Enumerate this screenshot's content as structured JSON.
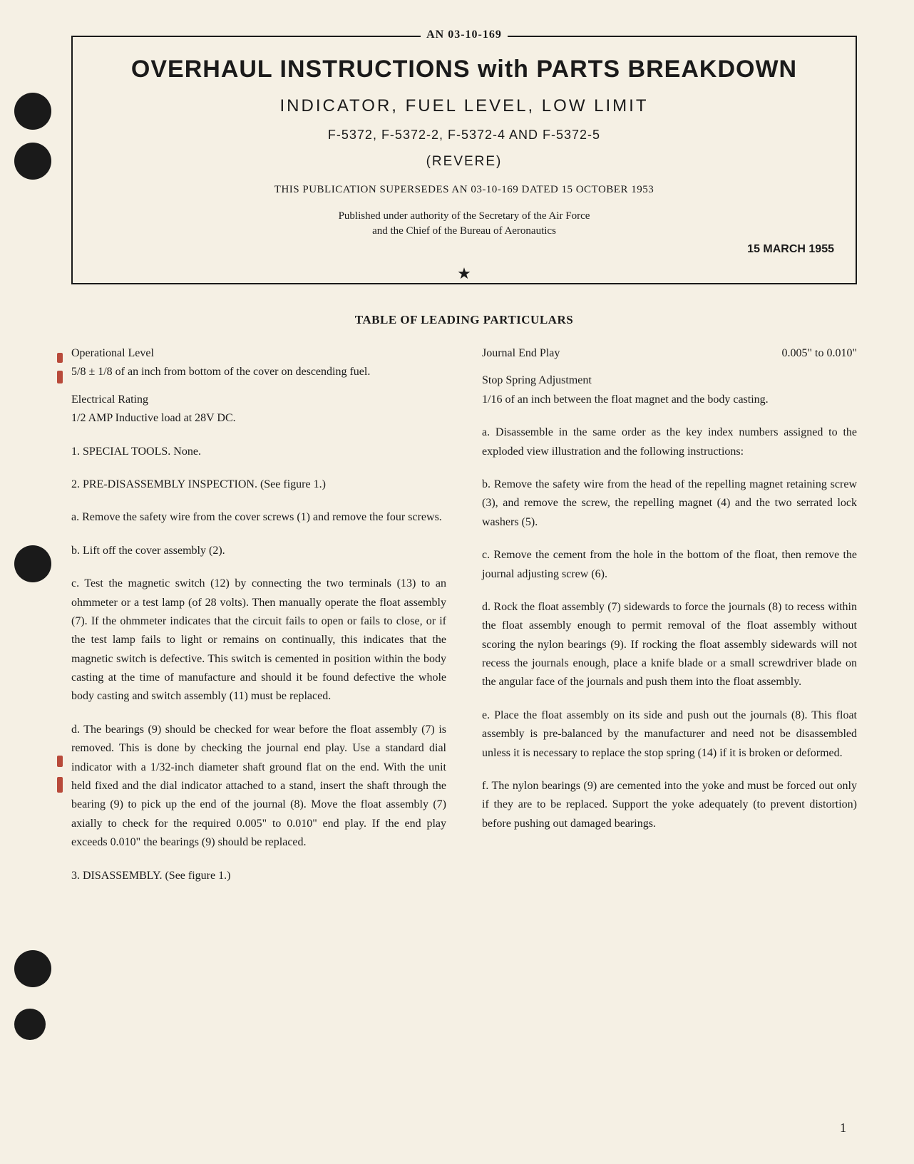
{
  "header": {
    "doc_id": "AN 03-10-169",
    "title": "OVERHAUL INSTRUCTIONS with PARTS BREAKDOWN",
    "subtitle": "INDICATOR, FUEL LEVEL, LOW LIMIT",
    "part_numbers": "F-5372, F-5372-2, F-5372-4 AND F-5372-5",
    "manufacturer": "(REVERE)",
    "supersedes": "THIS PUBLICATION SUPERSEDES AN 03-10-169 DATED 15 OCTOBER 1953",
    "authority_1": "Published under authority of the Secretary of the Air Force",
    "authority_2": "and the Chief of the Bureau of Aeronautics",
    "date": "15 MARCH 1955",
    "star": "★"
  },
  "table_heading": "TABLE OF LEADING PARTICULARS",
  "particulars": {
    "op_level_label": "Operational Level",
    "op_level_value": "5/8 ± 1/8 of an inch from bottom of the cover on descending fuel.",
    "electrical_label": "Electrical Rating",
    "electrical_value": "1/2 AMP Inductive load at 28V DC.",
    "journal_label": "Journal End Play",
    "journal_value": "0.005\" to 0.010\"",
    "stop_spring_label": "Stop Spring Adjustment",
    "stop_spring_value": "1/16 of an inch between the float magnet and the body casting."
  },
  "body": {
    "s1": "1. SPECIAL TOOLS. None.",
    "s2": "2. PRE-DISASSEMBLY INSPECTION. (See figure 1.)",
    "s2a": "a. Remove the safety wire from the cover screws (1) and remove the four screws.",
    "s2b": "b. Lift off the cover assembly (2).",
    "s2c": "c. Test the magnetic switch (12) by connecting the two terminals (13) to an ohmmeter or a test lamp (of 28 volts). Then manually operate the float assembly (7). If the ohmmeter indicates that the circuit fails to open or fails to close, or if the test lamp fails to light or remains on continually, this indicates that the magnetic switch is defective. This switch is cemented in position within the body casting at the time of manufacture and should it be found defective the whole body casting and switch assembly (11) must be replaced.",
    "s2d": "d. The bearings (9) should be checked for wear before the float assembly (7) is removed. This is done by checking the journal end play. Use a standard dial indicator with a 1/32-inch diameter shaft ground flat on the end. With the unit held fixed and the dial indicator attached to a stand, insert the shaft through the bearing (9) to pick up the end of the journal (8). Move the float assembly (7) axially to check for the required 0.005\" to 0.010\" end play. If the end play exceeds 0.010\" the bearings (9) should be replaced.",
    "s3": "3. DISASSEMBLY. (See figure 1.)",
    "s3a": "a. Disassemble in the same order as the key index numbers assigned to the exploded view illustration and the following instructions:",
    "s3b": "b. Remove the safety wire from the head of the repelling magnet retaining screw (3), and remove the screw, the repelling magnet (4) and the two serrated lock washers (5).",
    "s3c": "c. Remove the cement from the hole in the bottom of the float, then remove the journal adjusting screw (6).",
    "s3d": "d. Rock the float assembly (7) sidewards to force the journals (8) to recess within the float assembly enough to permit removal of the float assembly without scoring the nylon bearings (9). If rocking the float assembly sidewards will not recess the journals enough, place a knife blade or a small screwdriver blade on the angular face of the journals and push them into the float assembly.",
    "s3e": "e. Place the float assembly on its side and push out the journals (8). This float assembly is pre-balanced by the manufacturer and need not be disassembled unless it is necessary to replace the stop spring (14) if it is broken or deformed.",
    "s3f": "f. The nylon bearings (9) are cemented into the yoke and must be forced out only if they are to be replaced. Support the yoke adequately (to prevent distortion) before pushing out damaged bearings."
  },
  "page_number": "1",
  "styling": {
    "page_bg": "#f5f0e4",
    "text_color": "#1a1a1a",
    "hole_color": "#1a1a1a",
    "red_mark_color": "#b84a3a",
    "border_width": 2,
    "body_font_size": 16,
    "title_font_size": 34
  }
}
